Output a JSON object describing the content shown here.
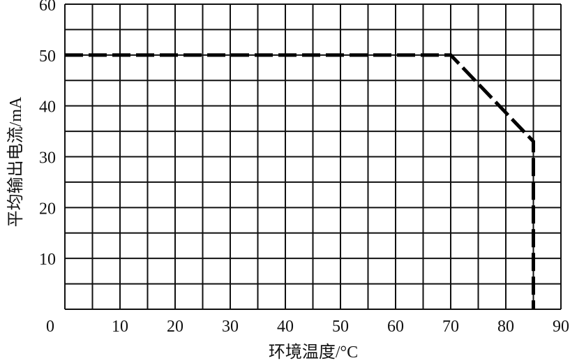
{
  "chart_data": {
    "type": "line",
    "title": "",
    "xlabel": "环境温度/°C",
    "ylabel": "平均输出电流/mA",
    "xlim": [
      0,
      90
    ],
    "ylim": [
      0,
      60
    ],
    "x_ticks": [
      "0",
      "10",
      "20",
      "30",
      "40",
      "50",
      "60",
      "70",
      "80",
      "90"
    ],
    "y_ticks": [
      "10",
      "20",
      "30",
      "40",
      "50",
      "60"
    ],
    "grid": true,
    "grid_step_x": 5,
    "grid_step_y": 5,
    "series": [
      {
        "style": "dashed",
        "color": "#000000",
        "x": [
          0,
          70,
          85,
          85
        ],
        "y": [
          50,
          50,
          33,
          0
        ]
      }
    ]
  }
}
